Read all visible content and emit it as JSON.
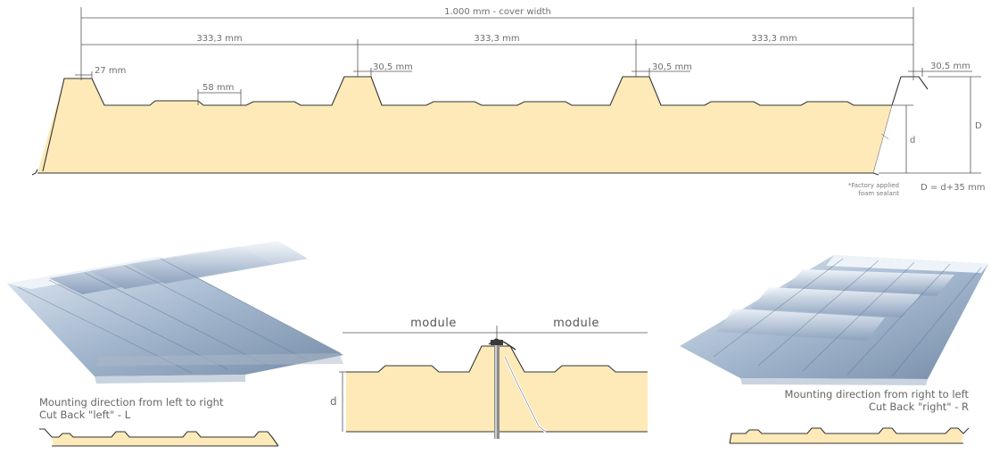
{
  "top_diagram": {
    "cover_width": "1.000 mm - cover width",
    "module_1": "333,3 mm",
    "module_2": "333,3 mm",
    "module_3": "333,3 mm",
    "rib_width_first": "27 mm",
    "valley_rib": "58 mm",
    "rib_width_2": "30,5 mm",
    "rib_width_3": "30,5 mm",
    "rib_width_end": "30,5 mm",
    "height_D": "D",
    "height_d": "d",
    "sealant_line1": "*Factory applied",
    "sealant_line2": "foam sealant",
    "formula": "D = d+35 mm"
  },
  "joint_detail": {
    "module_left": "module",
    "module_right": "module",
    "depth_label": "d"
  },
  "left_panel": {
    "caption_line1": "Mounting direction from left to right",
    "caption_line2": "Cut Back \"left\" - L"
  },
  "right_panel": {
    "caption_line1": "Mounting direction from right to left",
    "caption_line2": "Cut Back \"right\" - R"
  },
  "colors": {
    "foam": "#fdeab8",
    "steel": "#9fb4cc",
    "line": "#555555"
  }
}
